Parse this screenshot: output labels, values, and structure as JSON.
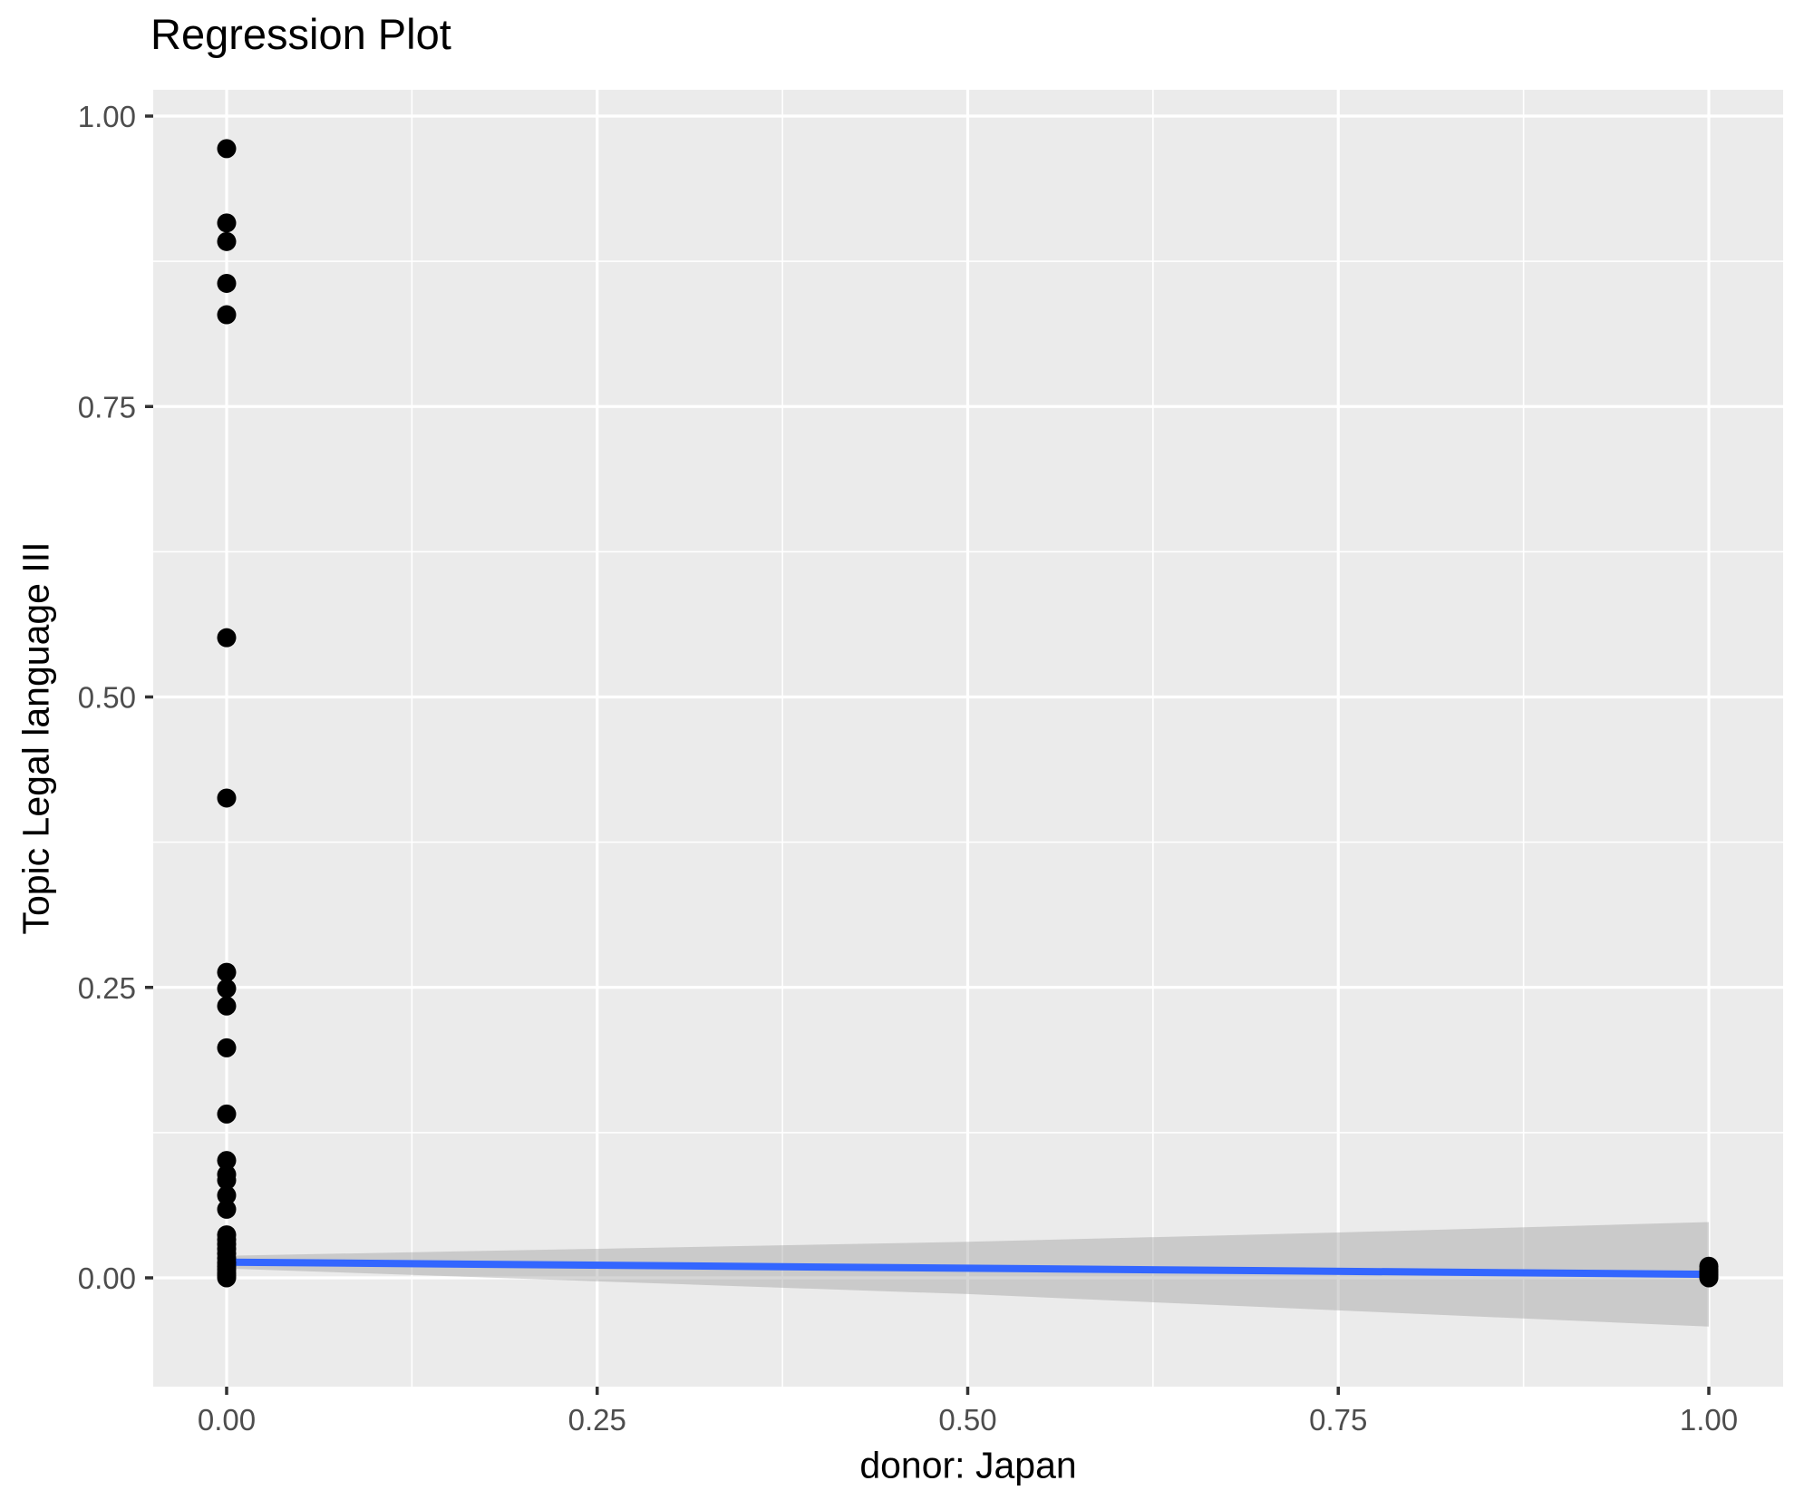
{
  "chart_data": {
    "type": "scatter",
    "title": "Regression Plot",
    "xlabel": "donor: Japan",
    "ylabel": "Topic Legal language III",
    "xlim": [
      -0.05,
      1.05
    ],
    "ylim": [
      -0.093,
      1.023
    ],
    "grid": true,
    "legend": false,
    "x_ticks": [
      {
        "v": 0.0,
        "label": "0.00"
      },
      {
        "v": 0.25,
        "label": "0.25"
      },
      {
        "v": 0.5,
        "label": "0.50"
      },
      {
        "v": 0.75,
        "label": "0.75"
      },
      {
        "v": 1.0,
        "label": "1.00"
      }
    ],
    "y_ticks": [
      {
        "v": 0.0,
        "label": "0.00"
      },
      {
        "v": 0.25,
        "label": "0.25"
      },
      {
        "v": 0.5,
        "label": "0.50"
      },
      {
        "v": 0.75,
        "label": "0.75"
      },
      {
        "v": 1.0,
        "label": "1.00"
      }
    ],
    "x_minor_ticks": [
      0.125,
      0.375,
      0.625,
      0.875
    ],
    "y_minor_ticks": [
      0.125,
      0.375,
      0.625,
      0.875
    ],
    "series": [
      {
        "name": "observations",
        "kind": "points",
        "points": [
          [
            0,
            0.972
          ],
          [
            0,
            0.908
          ],
          [
            0,
            0.892
          ],
          [
            0,
            0.856
          ],
          [
            0,
            0.829
          ],
          [
            0,
            0.551
          ],
          [
            0,
            0.413
          ],
          [
            0,
            0.263
          ],
          [
            0,
            0.249
          ],
          [
            0,
            0.234
          ],
          [
            0,
            0.198
          ],
          [
            0,
            0.141
          ],
          [
            0,
            0.101
          ],
          [
            0,
            0.089
          ],
          [
            0,
            0.084
          ],
          [
            0,
            0.071
          ],
          [
            0,
            0.059
          ],
          [
            0,
            0.037
          ],
          [
            0,
            0.033
          ],
          [
            0,
            0.029
          ],
          [
            0,
            0.025
          ],
          [
            0,
            0.021
          ],
          [
            0,
            0.017
          ],
          [
            0,
            0.013
          ],
          [
            0,
            0.01
          ],
          [
            0,
            0.007
          ],
          [
            0,
            0.004
          ],
          [
            0,
            0.002
          ],
          [
            0,
            0.0
          ],
          [
            1,
            0.01
          ],
          [
            1,
            0.007
          ],
          [
            1,
            0.005
          ],
          [
            1,
            0.003
          ],
          [
            1,
            0.001
          ],
          [
            1,
            0.0
          ]
        ]
      },
      {
        "name": "regression-fit",
        "kind": "line",
        "x": [
          0,
          1
        ],
        "y": [
          0.0135,
          0.003
        ]
      },
      {
        "name": "confidence-band",
        "kind": "area",
        "x": [
          0,
          0.25,
          0.5,
          0.75,
          1
        ],
        "upper": [
          0.019,
          0.025,
          0.031,
          0.039,
          0.048
        ],
        "lower": [
          0.008,
          -0.003,
          -0.014,
          -0.028,
          -0.042
        ]
      }
    ],
    "colors": {
      "panel_background": "#EBEBEB",
      "gridline": "#FFFFFF",
      "point": "#000000",
      "fit_line": "#3366FF",
      "band_fill": "#999999",
      "band_opacity": 0.4,
      "tick_label": "#4D4D4D",
      "tick_mark": "#333333",
      "title_text": "#000000"
    }
  }
}
